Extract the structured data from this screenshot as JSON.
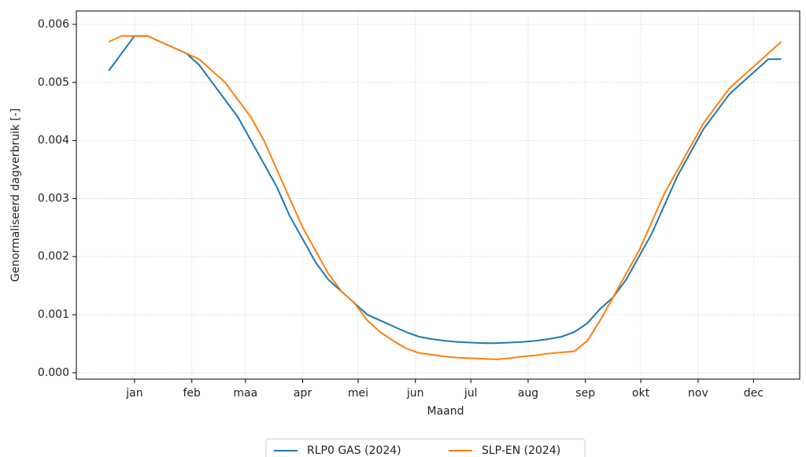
{
  "chart_data": {
    "type": "line",
    "xlabel": "Maand",
    "ylabel": "Genormaliseerd dagverbruik [-]",
    "x": [
      1,
      8,
      15,
      22,
      29,
      36,
      43,
      50,
      57,
      64,
      71,
      78,
      85,
      92,
      99,
      106,
      113,
      120,
      127,
      134,
      141,
      148,
      155,
      162,
      169,
      176,
      183,
      190,
      197,
      204,
      211,
      218,
      225,
      232,
      239,
      246,
      253,
      260,
      267,
      274,
      281,
      288,
      295,
      302,
      309,
      316,
      323,
      330,
      337,
      344,
      351,
      358,
      365
    ],
    "series": [
      {
        "name": "RLP0 GAS (2024)",
        "color": "#1f77b4",
        "values": [
          0.0052,
          0.0055,
          0.0058,
          0.0058,
          0.0057,
          0.0056,
          0.0055,
          0.0053,
          0.005,
          0.0047,
          0.0044,
          0.004,
          0.0036,
          0.0032,
          0.0027,
          0.0023,
          0.0019,
          0.0016,
          0.0014,
          0.0012,
          0.001,
          0.0009,
          0.0008,
          0.0007,
          0.00062,
          0.00058,
          0.00055,
          0.00053,
          0.00052,
          0.00051,
          0.00051,
          0.00052,
          0.00053,
          0.00055,
          0.00058,
          0.00062,
          0.0007,
          0.00085,
          0.0011,
          0.0013,
          0.0016,
          0.002,
          0.0024,
          0.0029,
          0.0034,
          0.0038,
          0.0042,
          0.0045,
          0.0048,
          0.005,
          0.0052,
          0.0054,
          0.0054
        ]
      },
      {
        "name": "SLP-EN (2024)",
        "color": "#ff7f0e",
        "values": [
          0.0057,
          0.0058,
          0.0058,
          0.0058,
          0.0057,
          0.0056,
          0.0055,
          0.0054,
          0.0052,
          0.005,
          0.0047,
          0.0044,
          0.004,
          0.0035,
          0.003,
          0.0025,
          0.0021,
          0.0017,
          0.0014,
          0.0012,
          0.0009,
          0.0007,
          0.00055,
          0.00042,
          0.00034,
          0.00031,
          0.00028,
          0.00026,
          0.00025,
          0.00024,
          0.00023,
          0.00025,
          0.00028,
          0.0003,
          0.00033,
          0.00035,
          0.00037,
          0.00055,
          0.0009,
          0.0013,
          0.0017,
          0.0021,
          0.0026,
          0.0031,
          0.0035,
          0.0039,
          0.0043,
          0.0046,
          0.0049,
          0.0051,
          0.0053,
          0.0055,
          0.0057
        ]
      }
    ],
    "xlim": [
      -16.5,
      375
    ],
    "xticks": [
      {
        "value": 15,
        "label": "jan"
      },
      {
        "value": 46,
        "label": "feb"
      },
      {
        "value": 75,
        "label": "maa"
      },
      {
        "value": 106,
        "label": "apr"
      },
      {
        "value": 136,
        "label": "mei"
      },
      {
        "value": 167,
        "label": "jun"
      },
      {
        "value": 197,
        "label": "jul"
      },
      {
        "value": 228,
        "label": "aug"
      },
      {
        "value": 259,
        "label": "sep"
      },
      {
        "value": 289,
        "label": "okt"
      },
      {
        "value": 320,
        "label": "nov"
      },
      {
        "value": 350,
        "label": "dec"
      }
    ],
    "ylim": [
      -0.00011,
      0.00623
    ],
    "yticks": [
      {
        "value": 0,
        "label": "0.000"
      },
      0.001,
      0.002,
      0.003,
      0.004,
      0.005,
      0.006
    ],
    "grid": true,
    "legend": "bottom"
  }
}
